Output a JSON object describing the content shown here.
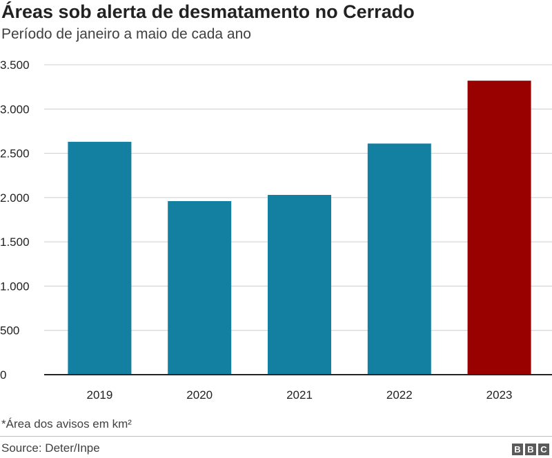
{
  "header": {
    "title": "Áreas sob alerta de desmatamento no Cerrado",
    "subtitle": "Período de janeiro a maio de cada ano"
  },
  "chart_data": {
    "type": "bar",
    "title": "Áreas sob alerta de desmatamento no Cerrado",
    "subtitle": "Período de janeiro a maio de cada ano",
    "categories": [
      "2019",
      "2020",
      "2021",
      "2022",
      "2023"
    ],
    "values": [
      2630,
      1960,
      2030,
      2610,
      3320
    ],
    "bar_colors": [
      "#1380a1",
      "#1380a1",
      "#1380a1",
      "#1380a1",
      "#990000"
    ],
    "yticks": [
      0,
      500,
      1000,
      1500,
      2000,
      2500,
      3000,
      3500
    ],
    "ytick_labels": [
      "0",
      "500",
      "1.000",
      "1.500",
      "2.000",
      "2.500",
      "3.000",
      "3.500"
    ],
    "ylim": [
      0,
      3500
    ],
    "xlabel": "",
    "ylabel": "",
    "grid": true,
    "legend": "none"
  },
  "footer": {
    "note": "*Área dos avisos em km²",
    "source": "Source: Deter/Inpe",
    "logo_letters": [
      "B",
      "B",
      "C"
    ]
  }
}
